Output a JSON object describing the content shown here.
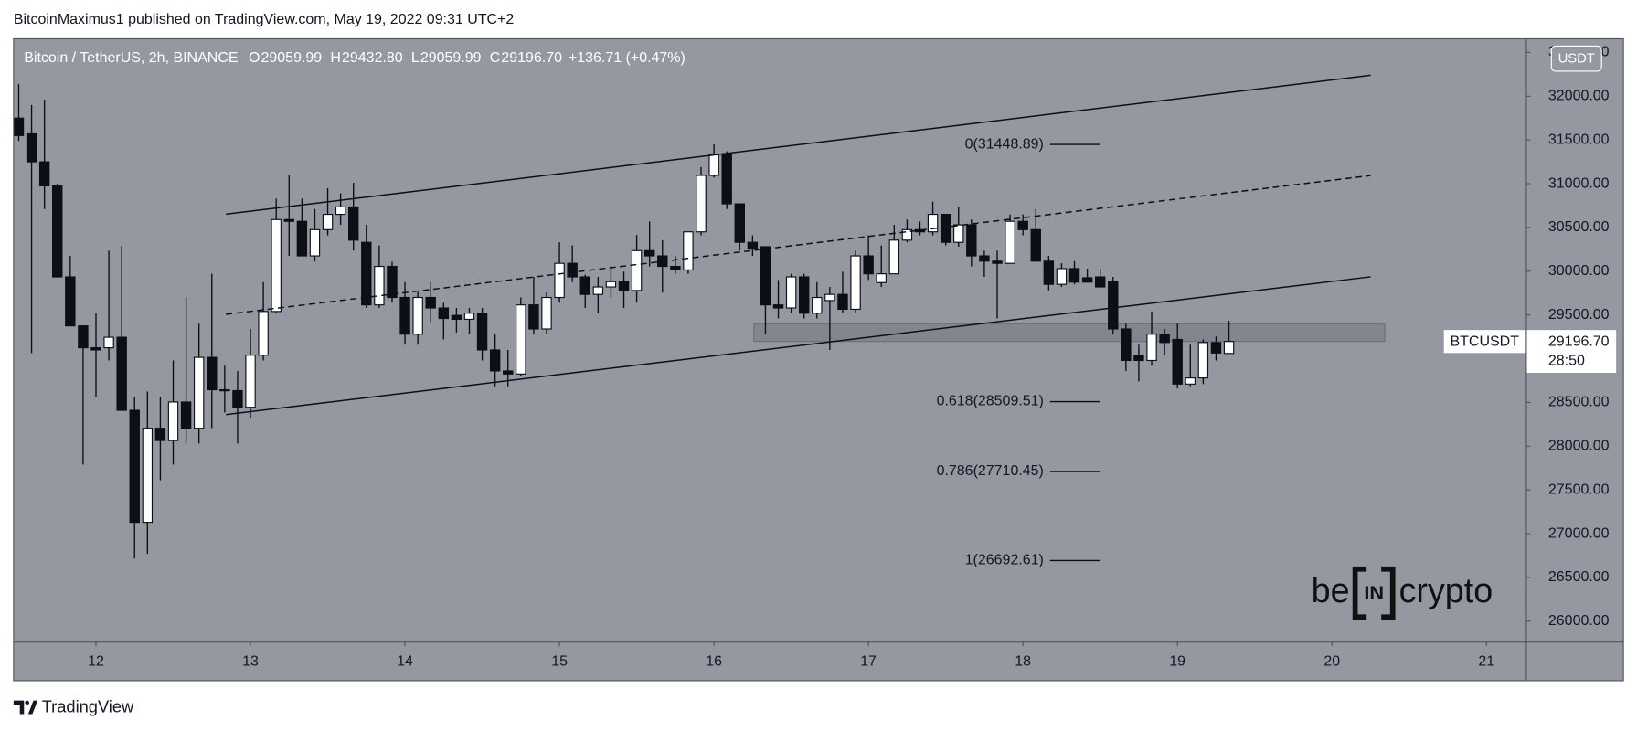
{
  "header": {
    "attribution": "BitcoinMaximus1 published on TradingView.com, May 19, 2022 09:31 UTC+2"
  },
  "footer": {
    "brand": "TradingView"
  },
  "watermark": {
    "left": "be",
    "middle": "IN",
    "right": "crypto"
  },
  "chart_data": {
    "type": "candlestick",
    "title": "Bitcoin / TetherUS, 2h, BINANCE",
    "legend_values": [
      {
        "key": "O",
        "value": 29059.99,
        "label": "29059.99"
      },
      {
        "key": "H",
        "value": 29432.8,
        "label": "29432.80"
      },
      {
        "key": "L",
        "value": 29059.99,
        "label": "29059.99"
      },
      {
        "key": "C",
        "value": 29196.7,
        "label": "29196.70"
      }
    ],
    "change": "+136.71 (+0.47%)",
    "currency": "USDT",
    "symbol": "BTCUSDT",
    "last_price": {
      "value": 29196.7,
      "label": "29196.70"
    },
    "countdown": "28:50",
    "up_color": "#ffffff",
    "down_color": "#0d0f16",
    "background": "#9598a1",
    "open": [
      31750,
      31570,
      31250,
      30975,
      29935,
      29375,
      29125,
      29125,
      29245,
      28410,
      27130,
      28205,
      28065,
      28505,
      28205,
      29015,
      28645,
      28635,
      28445,
      29040,
      29540,
      30590,
      30570,
      30175,
      30475,
      30650,
      30735,
      30330,
      29615,
      30055,
      29700,
      29280,
      29700,
      29580,
      29495,
      29450,
      29520,
      29100,
      28860,
      28825,
      29615,
      29340,
      29700,
      30090,
      29935,
      29735,
      29820,
      29880,
      29780,
      30235,
      30175,
      30055,
      30015,
      30450,
      31095,
      31330,
      30770,
      30330,
      30280,
      29615,
      29580,
      29935,
      29520,
      29665,
      29735,
      29565,
      30175,
      29870,
      29970,
      30355,
      30475,
      30450,
      30650,
      30330,
      30530,
      30175,
      30115,
      30090,
      30570,
      30475,
      30115,
      29850,
      30030,
      29925,
      29935,
      29880,
      29340,
      29040,
      28980,
      29280,
      29220,
      28710,
      28780,
      29185,
      29059.99
    ],
    "high": [
      32140,
      31900,
      31960,
      31000,
      30175,
      29375,
      29520,
      30235,
      30290,
      28565,
      28625,
      28565,
      28980,
      29700,
      29400,
      29970,
      28920,
      28860,
      29340,
      29875,
      30830,
      31095,
      30830,
      30710,
      30950,
      30890,
      31010,
      30530,
      30295,
      30110,
      29875,
      29760,
      29875,
      29640,
      29580,
      29580,
      29580,
      29280,
      29100,
      29700,
      29935,
      29760,
      30330,
      30295,
      29960,
      29935,
      30055,
      29995,
      30415,
      30570,
      30355,
      30175,
      30450,
      31190,
      31450,
      31370,
      30770,
      30410,
      30280,
      29900,
      29970,
      29970,
      29875,
      29820,
      29995,
      30235,
      30410,
      30295,
      30530,
      30590,
      30570,
      30795,
      30650,
      30735,
      30590,
      30235,
      30235,
      30650,
      30650,
      30710,
      30175,
      30090,
      30115,
      30030,
      30030,
      29935,
      29400,
      29160,
      29540,
      29340,
      29400,
      29160,
      29220,
      29255,
      29432.8
    ],
    "low": [
      31490,
      29065,
      30710,
      29935,
      29375,
      27790,
      28565,
      28980,
      28410,
      26715,
      26770,
      27610,
      27790,
      28030,
      28030,
      28205,
      28385,
      28030,
      28325,
      28980,
      29520,
      30175,
      30175,
      30110,
      30410,
      30530,
      30235,
      29580,
      29580,
      29640,
      29160,
      29160,
      29400,
      29220,
      29300,
      29280,
      28980,
      28685,
      28685,
      28800,
      29280,
      29280,
      29640,
      29875,
      29580,
      29520,
      29700,
      29580,
      29640,
      30055,
      29755,
      29970,
      29970,
      30410,
      31070,
      30710,
      30235,
      30175,
      29280,
      29460,
      29520,
      29460,
      29460,
      29100,
      29520,
      29520,
      29900,
      29820,
      29970,
      30330,
      30410,
      30410,
      30295,
      30280,
      30055,
      29935,
      29460,
      30090,
      30410,
      30115,
      29780,
      29820,
      29850,
      29875,
      29820,
      29280,
      28860,
      28740,
      28920,
      29040,
      28660,
      28685,
      28710,
      28980,
      29059.99
    ],
    "close": [
      31550,
      31250,
      30975,
      29935,
      29375,
      29125,
      29100,
      29245,
      28410,
      27130,
      28205,
      28065,
      28505,
      28205,
      29015,
      28645,
      28635,
      28445,
      29040,
      29540,
      30590,
      30570,
      30175,
      30475,
      30650,
      30735,
      30355,
      29615,
      30055,
      29700,
      29280,
      29700,
      29580,
      29460,
      29450,
      29520,
      29100,
      28860,
      28825,
      29615,
      29340,
      29700,
      30090,
      29935,
      29735,
      29820,
      29880,
      29780,
      30235,
      30175,
      30055,
      30015,
      30450,
      31095,
      31330,
      30770,
      30330,
      30260,
      29615,
      29580,
      29935,
      29520,
      29700,
      29735,
      29565,
      30175,
      29970,
      29970,
      30355,
      30475,
      30450,
      30650,
      30330,
      30530,
      30175,
      30115,
      30090,
      30570,
      30475,
      30115,
      29850,
      30030,
      29875,
      29875,
      29820,
      29340,
      28980,
      28980,
      29280,
      29185,
      28710,
      28780,
      29185,
      29065,
      29196.7
    ],
    "xlim": [
      -0.4,
      117.1
    ],
    "xticks": [
      {
        "value": 6,
        "label": "12"
      },
      {
        "value": 18,
        "label": "13"
      },
      {
        "value": 30,
        "label": "14"
      },
      {
        "value": 42,
        "label": "15"
      },
      {
        "value": 54,
        "label": "16"
      },
      {
        "value": 66,
        "label": "17"
      },
      {
        "value": 78,
        "label": "18"
      },
      {
        "value": 90,
        "label": "19"
      },
      {
        "value": 102,
        "label": "20"
      },
      {
        "value": 114,
        "label": "21"
      }
    ],
    "ylim": [
      25761,
      32656
    ],
    "yticks": [
      {
        "value": 26000,
        "label": "26000.00"
      },
      {
        "value": 26500,
        "label": "26500.00"
      },
      {
        "value": 27000,
        "label": "27000.00"
      },
      {
        "value": 27500,
        "label": "27500.00"
      },
      {
        "value": 28000,
        "label": "28000.00"
      },
      {
        "value": 28500,
        "label": "28500.00"
      },
      {
        "value": 29000,
        "label": "29000.00"
      },
      {
        "value": 29500,
        "label": "29500.00"
      },
      {
        "value": 30000,
        "label": "30000.00"
      },
      {
        "value": 30500,
        "label": "30500.00"
      },
      {
        "value": 31000,
        "label": "31000.00"
      },
      {
        "value": 31500,
        "label": "31500.00"
      },
      {
        "value": 32000,
        "label": "32000.00"
      },
      {
        "value": 32500,
        "label": "32500.00"
      }
    ],
    "channel": [
      {
        "style": "solid",
        "x": [
          16.1,
          105
        ],
        "y": [
          30652,
          32239
        ]
      },
      {
        "style": "dashed",
        "x": [
          16.1,
          105
        ],
        "y": [
          29507,
          31093
        ]
      },
      {
        "style": "solid",
        "x": [
          16.1,
          105
        ],
        "y": [
          28361,
          29936
        ]
      }
    ],
    "zone": {
      "x": [
        57.1,
        106.1
      ],
      "y": [
        29197,
        29400
      ]
    },
    "fib_levels": [
      {
        "value": 31448.89,
        "label": "0(31448.89)"
      },
      {
        "value": 28509.51,
        "label": "0.618(28509.51)"
      },
      {
        "value": 27710.45,
        "label": "0.786(27710.45)"
      },
      {
        "value": 26692.61,
        "label": "1(26692.61)"
      }
    ]
  }
}
